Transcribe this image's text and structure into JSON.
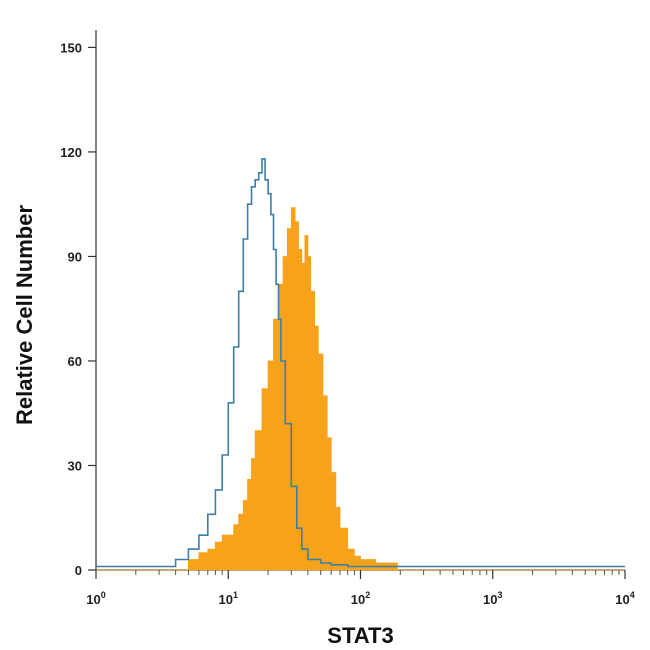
{
  "chart_data": {
    "type": "area",
    "title": "",
    "xlabel": "STAT3",
    "ylabel": "Relative Cell Number",
    "xscale": "log",
    "xlim": [
      1,
      10000
    ],
    "ylim": [
      0,
      155
    ],
    "grid": false,
    "legend": "none",
    "x_ticks": [
      {
        "value": 1,
        "base": "10",
        "exp": "0"
      },
      {
        "value": 10,
        "base": "10",
        "exp": "1"
      },
      {
        "value": 100,
        "base": "10",
        "exp": "2"
      },
      {
        "value": 1000,
        "base": "10",
        "exp": "3"
      },
      {
        "value": 10000,
        "base": "10",
        "exp": "4"
      }
    ],
    "y_ticks": [
      {
        "value": 0,
        "label": "0"
      },
      {
        "value": 30,
        "label": "30"
      },
      {
        "value": 60,
        "label": "60"
      },
      {
        "value": 90,
        "label": "90"
      },
      {
        "value": 120,
        "label": "120"
      },
      {
        "value": 150,
        "label": "150"
      }
    ],
    "series": [
      {
        "style": "outline",
        "color": "#3d7ea6",
        "x": [
          1,
          3.2,
          4,
          5,
          6,
          7,
          8,
          9,
          10,
          11,
          12,
          13,
          14,
          15,
          16,
          17,
          18,
          19,
          20,
          21,
          22,
          23,
          24,
          25,
          27,
          30,
          33,
          36,
          40,
          50,
          60,
          80,
          100,
          300,
          1000,
          10000
        ],
        "values": [
          1,
          1,
          3,
          6,
          10,
          16,
          23,
          33,
          48,
          64,
          80,
          95,
          105,
          110,
          112,
          114,
          118,
          112,
          108,
          102,
          92,
          82,
          72,
          60,
          42,
          24,
          12,
          6,
          3,
          2,
          1.5,
          1,
          1,
          1,
          1,
          1
        ]
      },
      {
        "style": "filled",
        "color": "#f7a21b",
        "x": [
          1,
          4,
          5,
          6,
          7,
          8,
          9,
          10,
          11,
          12,
          13,
          14,
          15,
          16,
          18,
          20,
          22,
          24,
          26,
          28,
          30,
          32,
          34,
          36,
          38,
          40,
          42,
          45,
          48,
          52,
          56,
          60,
          65,
          70,
          80,
          90,
          100,
          130,
          180,
          190,
          10000
        ],
        "values": [
          0,
          0,
          3,
          5,
          6,
          8,
          10,
          10,
          13,
          16,
          20,
          26,
          32,
          40,
          52,
          60,
          72,
          82,
          90,
          98,
          104,
          100,
          92,
          88,
          96,
          90,
          80,
          70,
          62,
          50,
          38,
          28,
          18,
          12,
          6,
          4,
          3,
          2,
          2,
          0,
          0
        ]
      }
    ]
  }
}
